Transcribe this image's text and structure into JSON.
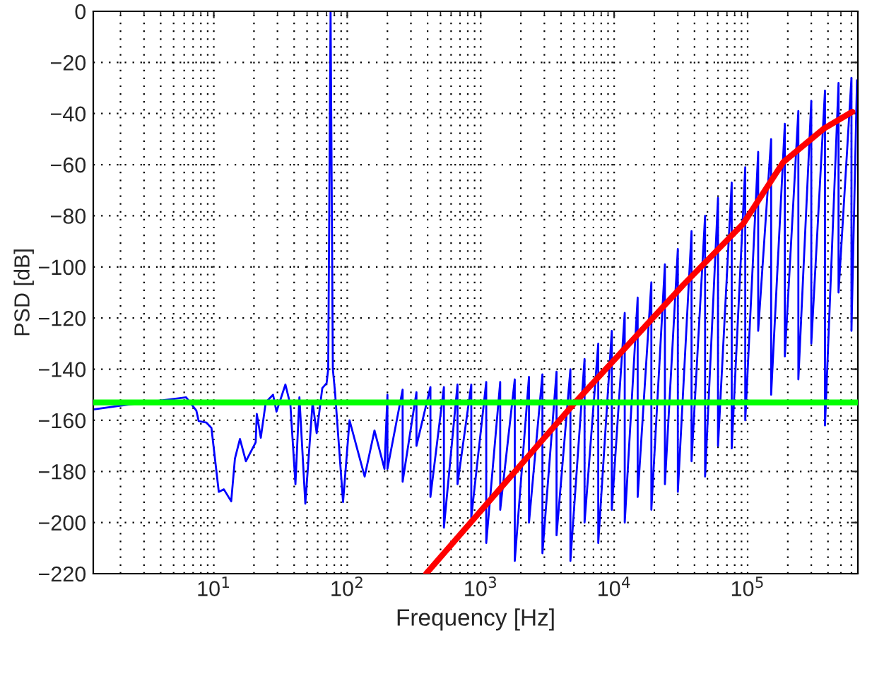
{
  "chart_data": {
    "type": "line",
    "xlabel": "Frequency [Hz]",
    "ylabel": "PSD [dB]",
    "log": "x",
    "xlim": [
      1.25,
      670000
    ],
    "ylim": [
      -220,
      0
    ],
    "xticks": [
      {
        "value": 10,
        "label": "10$^{1}$"
      },
      {
        "value": 100,
        "label": "10$^{2}$"
      },
      {
        "value": 1000,
        "label": "10$^{3}$"
      },
      {
        "value": 10000,
        "label": "10$^{4}$"
      },
      {
        "value": 100000,
        "label": "10$^{5}$"
      }
    ],
    "yticks": [
      {
        "value": -220,
        "label": "−220"
      },
      {
        "value": -200,
        "label": "−200"
      },
      {
        "value": -180,
        "label": "−180"
      },
      {
        "value": -160,
        "label": "−160"
      },
      {
        "value": -140,
        "label": "−140"
      },
      {
        "value": -120,
        "label": "−120"
      },
      {
        "value": -100,
        "label": "−100"
      },
      {
        "value": -80,
        "label": "−80"
      },
      {
        "value": -60,
        "label": "−60"
      },
      {
        "value": -40,
        "label": "−40"
      },
      {
        "value": -20,
        "label": "−20"
      },
      {
        "value": 0,
        "label": "0"
      }
    ],
    "grid": true,
    "marker": "none",
    "line_style": "solid",
    "series": [
      {
        "color": "#0000ff",
        "x": [
          1.27,
          2.35,
          4.45,
          6.2,
          7.4,
          7.7,
          8.8,
          9.6,
          10.9,
          11.9,
          13.5,
          14.4,
          15.7,
          17.4,
          20.6,
          21,
          22.5,
          24.5,
          27.8,
          29.5,
          34.4,
          37.5,
          40.9,
          43.8,
          48.5,
          55,
          59,
          65,
          70,
          72,
          75,
          78,
          81,
          93,
          104,
          135,
          160,
          190,
          200,
          200,
          260,
          260,
          330,
          330,
          420,
          420,
          530,
          530,
          670,
          670,
          850,
          850,
          1100,
          1100,
          1400,
          1400,
          1800,
          1800,
          2300,
          2300,
          2900,
          2900,
          3700,
          3700,
          4700,
          4700,
          6000,
          6000,
          7600,
          7600,
          9600,
          9600,
          12000,
          12000,
          15000,
          15000,
          19000,
          19000,
          24000,
          24000,
          30000,
          30000,
          38000,
          38000,
          48000,
          48000,
          60000,
          60000,
          76000,
          76000,
          96000,
          96000,
          120000,
          120000,
          150000,
          150000,
          190000,
          190000,
          240000,
          240000,
          300000,
          300000,
          380000,
          380000,
          480000,
          480000,
          600000,
          600000,
          660000
        ],
        "values": [
          -155.7,
          -153.8,
          -152,
          -151,
          -156.2,
          -160.3,
          -160.9,
          -163,
          -188,
          -187,
          -191.7,
          -175,
          -167.3,
          -176,
          -168.6,
          -157.5,
          -166.8,
          -153,
          -150,
          -156.6,
          -146,
          -154,
          -185,
          -151,
          -192.6,
          -153,
          -165,
          -147.4,
          -145.5,
          -140,
          0,
          -140,
          -149,
          -192,
          -160,
          -182,
          -164,
          -179,
          -150,
          -179,
          -148,
          -184,
          -149,
          -170,
          -147,
          -190,
          -147,
          -202,
          -146,
          -185,
          -146,
          -198,
          -145,
          -208,
          -145,
          -195,
          -144,
          -215,
          -143,
          -200,
          -142,
          -212,
          -141,
          -205,
          -140,
          -215,
          -136,
          -200,
          -130,
          -208,
          -125,
          -195,
          -118,
          -200,
          -112,
          -190,
          -106,
          -195,
          -99,
          -185,
          -93,
          -188,
          -86,
          -176,
          -80,
          -182,
          -73,
          -170,
          -67,
          -171,
          -61,
          -160,
          -55,
          -125,
          -50,
          -150,
          -44,
          -135,
          -39,
          -144,
          -35,
          -130,
          -31,
          -162,
          -28,
          -110,
          -26,
          -125,
          -27
        ]
      },
      {
        "color": "#ff0000",
        "x": [
          390,
          5100,
          33000,
          93000,
          185000,
          370000,
          610000
        ],
        "values": [
          -220,
          -153,
          -107,
          -83,
          -59,
          -46,
          -39.3
        ]
      }
    ],
    "ref_lines": [
      {
        "axis": "y",
        "value": -153,
        "color": "#00ff00"
      }
    ]
  }
}
